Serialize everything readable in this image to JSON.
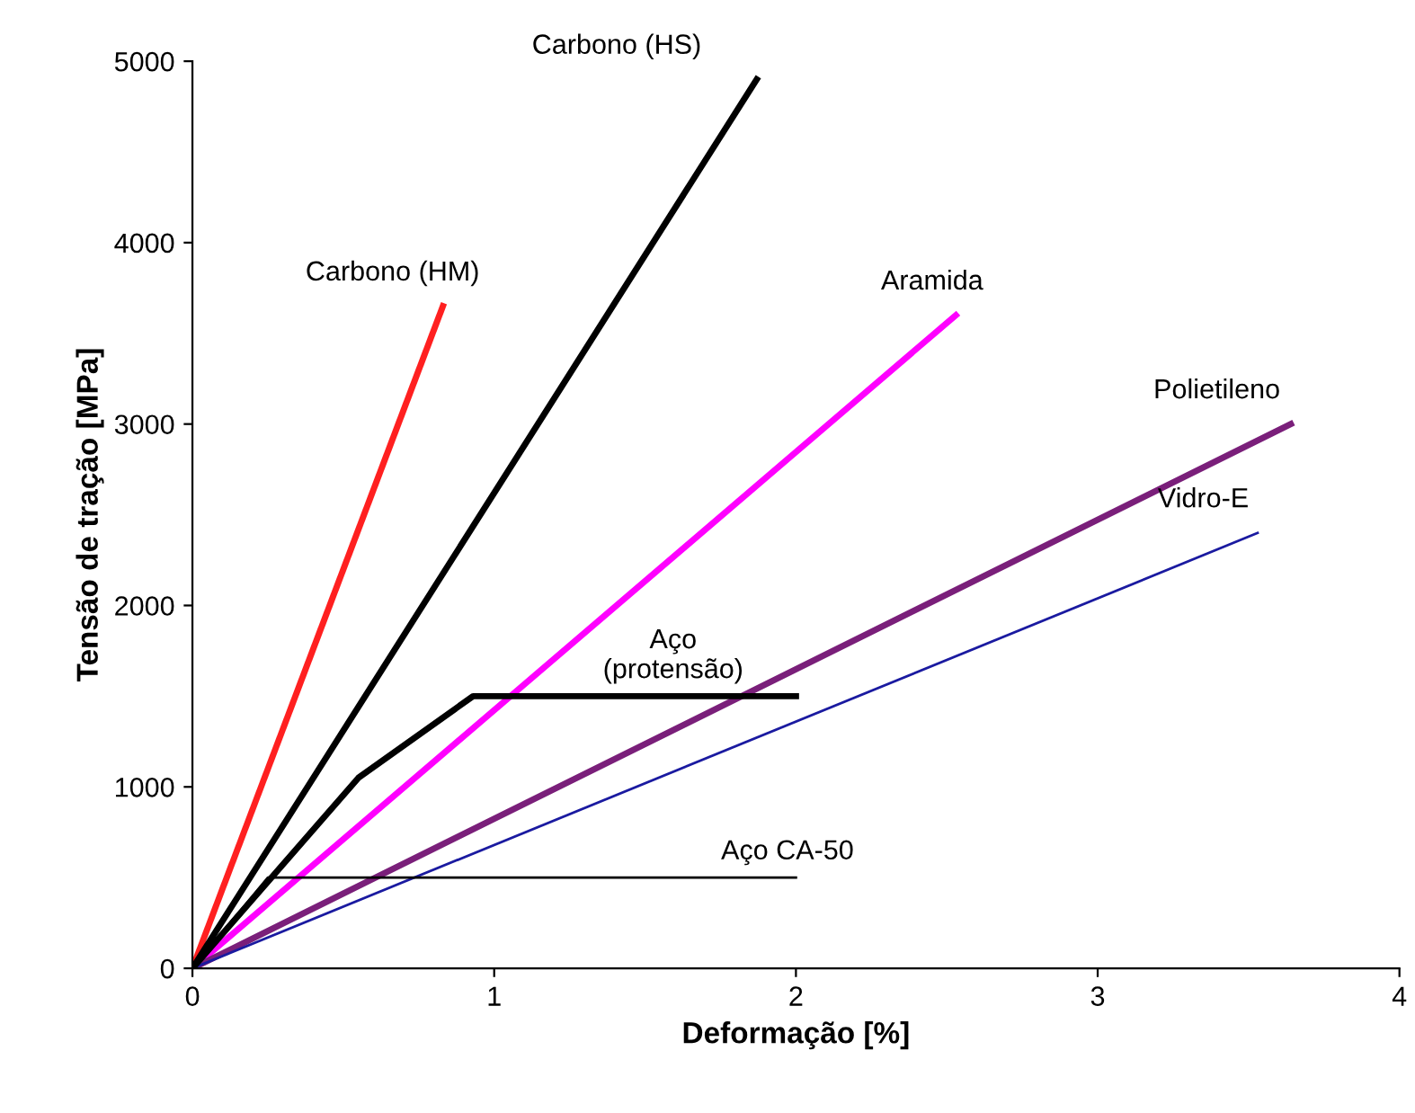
{
  "chart_data": {
    "type": "line",
    "xlabel": "Deformação [%]",
    "ylabel": "Tensão de tração [MPa]",
    "xlim": [
      0,
      4
    ],
    "ylim": [
      0,
      5000
    ],
    "xticks": [
      0,
      1,
      2,
      3,
      4
    ],
    "yticks": [
      0,
      1000,
      2000,
      3000,
      4000,
      5000
    ],
    "grid": false,
    "marker": "none",
    "line_style": "solid",
    "series": [
      {
        "color": "#ff2020",
        "x": [
          0,
          0.83
        ],
        "values": [
          0,
          3650
        ]
      },
      {
        "color": "#000000",
        "x": [
          0,
          1.87
        ],
        "values": [
          0,
          4900
        ]
      },
      {
        "color": "#ff00ff",
        "x": [
          0,
          2.53
        ],
        "values": [
          0,
          3600
        ]
      },
      {
        "color": "#7a1f7a",
        "x": [
          0,
          3.64
        ],
        "values": [
          0,
          3000
        ]
      },
      {
        "color": "#1a1aa0",
        "x": [
          0,
          3.53
        ],
        "values": [
          0,
          2400
        ]
      },
      {
        "color": "#000000",
        "x": [
          0,
          0.55,
          0.93,
          2.0
        ],
        "values": [
          0,
          1050,
          1500,
          1500
        ]
      },
      {
        "color": "#000000",
        "x": [
          0,
          0.25,
          2.0
        ],
        "values": [
          0,
          500,
          500
        ]
      }
    ],
    "annotations": [
      {
        "text": "Carbono (HM)",
        "x": 0.83,
        "y": 3650
      },
      {
        "text": "Carbono (HS)",
        "x": 1.87,
        "y": 4900
      },
      {
        "text": "Aramida",
        "x": 2.53,
        "y": 3600
      },
      {
        "text": "Polietileno",
        "x": 3.64,
        "y": 3000
      },
      {
        "text": "Vidro-E",
        "x": 3.53,
        "y": 2400
      },
      {
        "text": "Aço\n(protensão)",
        "x": 1.65,
        "y": 1500
      },
      {
        "text": "Aço CA-50",
        "x": 2.0,
        "y": 500
      }
    ]
  }
}
